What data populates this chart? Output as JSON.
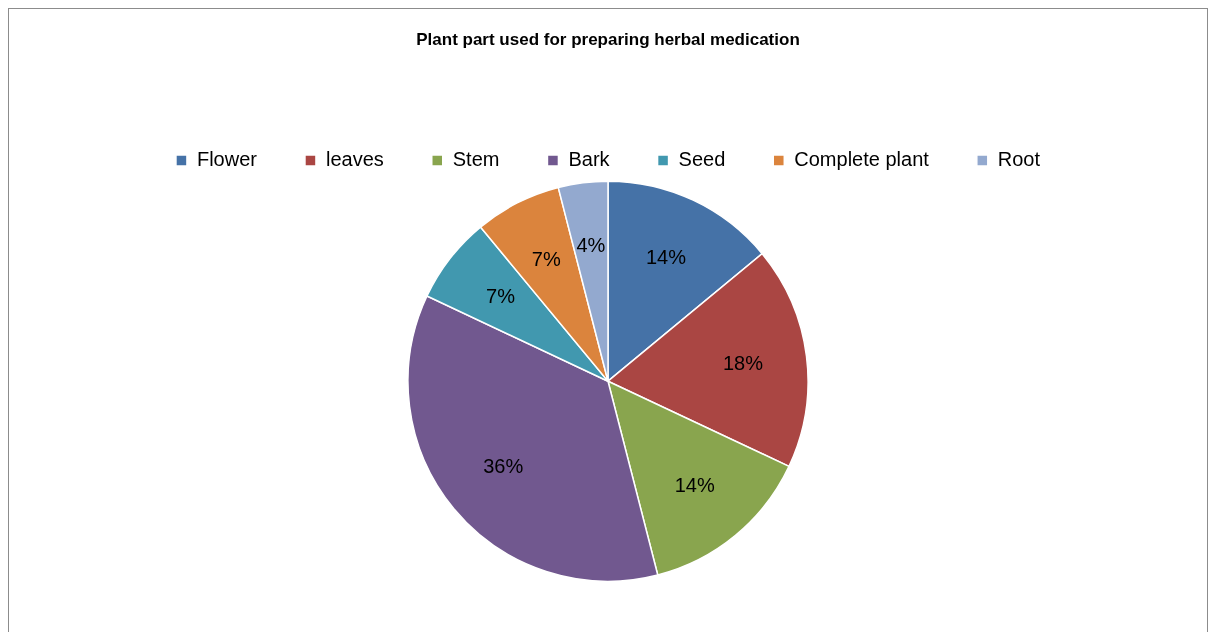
{
  "chart_data": {
    "type": "pie",
    "title": "Plant part used for preparing herbal medication",
    "categories": [
      "Flower",
      "leaves",
      "Stem",
      "Bark",
      "Seed",
      "Complete plant",
      "Root"
    ],
    "values": [
      14,
      18,
      14,
      36,
      7,
      7,
      4
    ],
    "colors": [
      "#4572a7",
      "#aa4643",
      "#89a54e",
      "#71588f",
      "#4198af",
      "#db843d",
      "#93a9cf"
    ],
    "value_labels": [
      "14%",
      "18%",
      "14%",
      "36%",
      "7%",
      "7%",
      "4%"
    ],
    "legend": "top"
  }
}
